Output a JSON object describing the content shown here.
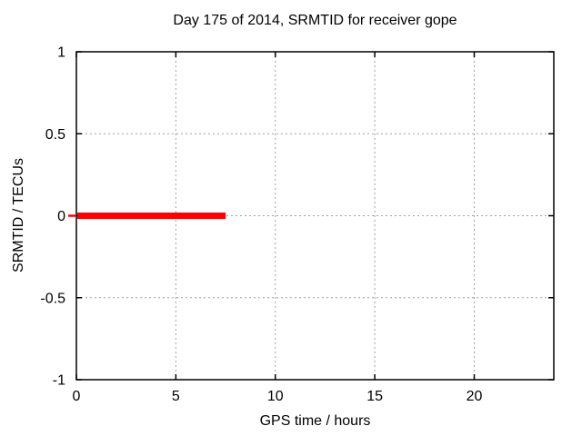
{
  "figure": {
    "background": "#ffffff"
  },
  "chart_data": {
    "type": "line",
    "title": "Day 175 of 2014, SRMTID for receiver gope",
    "xlabel": "GPS time / hours",
    "ylabel": "SRMTID / TECUs",
    "xlim": [
      0,
      24
    ],
    "ylim": [
      -1,
      1
    ],
    "xticks": [
      0,
      5,
      10,
      15,
      20
    ],
    "yticks": [
      1,
      0.5,
      0,
      -0.5,
      -1
    ],
    "grid": true,
    "legend": "none",
    "series": [
      {
        "name": "SRMTID",
        "color": "#ff0000",
        "linewidth": 7,
        "x": [
          0,
          7.5
        ],
        "y": [
          0,
          0
        ]
      }
    ],
    "colors": {
      "border": "#000000",
      "grid": "#a0a0a0",
      "text": "#000000",
      "background": "#ffffff"
    }
  }
}
